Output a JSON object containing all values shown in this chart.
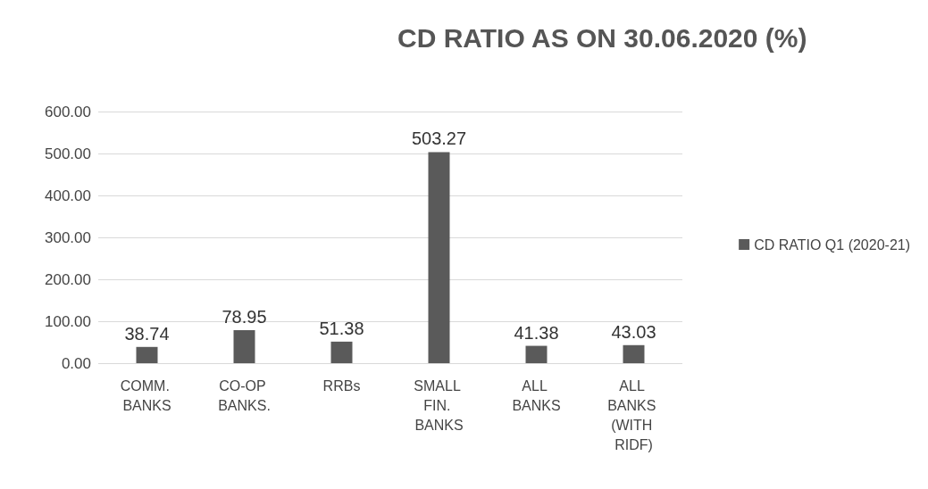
{
  "chart_data": {
    "type": "bar",
    "title": "CD RATIO AS ON 30.06.2020 (%)",
    "categories": [
      "COMM. BANKS",
      "CO-OP BANKS.",
      "RRBs",
      "SMALL FIN. BANKS",
      "ALL BANKS",
      "ALL BANKS (WITH RIDF)"
    ],
    "series": [
      {
        "name": "CD RATIO Q1 (2020-21)",
        "color": "#5a5a5a",
        "values": [
          38.74,
          78.95,
          51.38,
          503.27,
          41.38,
          43.03
        ]
      }
    ],
    "ylim": [
      0,
      600
    ],
    "yticks": [
      {
        "value": 0,
        "label": "0.00"
      },
      {
        "value": 100,
        "label": "100.00"
      },
      {
        "value": 200,
        "label": "200.00"
      },
      {
        "value": 300,
        "label": "300.00"
      },
      {
        "value": 400,
        "label": "400.00"
      },
      {
        "value": 500,
        "label": "500.00"
      },
      {
        "value": 600,
        "label": "600.00"
      }
    ],
    "grid": "y",
    "legend": "right",
    "data_labels": true
  }
}
